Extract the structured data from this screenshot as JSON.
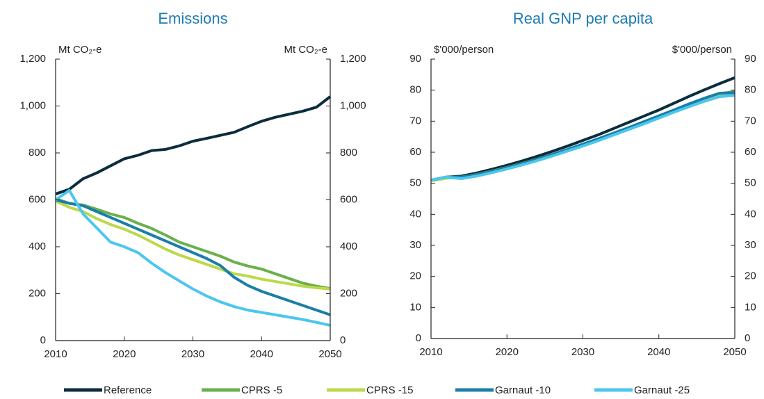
{
  "chart_data": [
    {
      "type": "line",
      "title": "Emissions",
      "ylabel": "Mt CO₂-e",
      "y2label": "Mt CO₂-e",
      "x": [
        2010,
        2012,
        2014,
        2016,
        2018,
        2020,
        2022,
        2024,
        2026,
        2028,
        2030,
        2032,
        2034,
        2036,
        2038,
        2040,
        2042,
        2044,
        2046,
        2048,
        2050
      ],
      "xlim": [
        2010,
        2050
      ],
      "xticks": [
        2010,
        2020,
        2030,
        2040,
        2050
      ],
      "ylim": [
        0,
        1200
      ],
      "yticks": [
        0,
        200,
        400,
        600,
        800,
        {
          "value": 1000,
          "label": "1,000"
        },
        {
          "value": 1200,
          "label": "1,200"
        }
      ],
      "y2lim": [
        0,
        1200
      ],
      "y2ticks": [
        0,
        200,
        400,
        600,
        800,
        {
          "value": 1000,
          "label": "1,000"
        },
        {
          "value": 1200,
          "label": "1,200"
        }
      ],
      "series": [
        {
          "name": "Reference",
          "color": "#0b2d3c",
          "values": [
            625,
            645,
            690,
            715,
            745,
            775,
            790,
            810,
            815,
            830,
            850,
            862,
            875,
            888,
            912,
            935,
            952,
            965,
            978,
            995,
            1040
          ]
        },
        {
          "name": "CPRS -5",
          "color": "#6ab04c",
          "values": [
            605,
            585,
            578,
            560,
            540,
            525,
            500,
            478,
            450,
            420,
            400,
            380,
            360,
            335,
            318,
            305,
            285,
            265,
            245,
            232,
            222
          ]
        },
        {
          "name": "CPRS -15",
          "color": "#bcd94a",
          "values": [
            595,
            568,
            550,
            520,
            495,
            475,
            450,
            420,
            390,
            365,
            345,
            325,
            305,
            285,
            275,
            262,
            252,
            242,
            232,
            225,
            220
          ]
        },
        {
          "name": "Garnaut -10",
          "color": "#1a7fa8",
          "values": [
            600,
            585,
            575,
            550,
            525,
            500,
            475,
            450,
            425,
            400,
            375,
            350,
            320,
            270,
            235,
            210,
            190,
            170,
            150,
            130,
            110
          ]
        },
        {
          "name": "Garnaut -25",
          "color": "#4cc6ef",
          "values": [
            600,
            640,
            540,
            480,
            420,
            400,
            375,
            330,
            290,
            255,
            220,
            190,
            165,
            145,
            130,
            120,
            110,
            100,
            90,
            78,
            65
          ]
        }
      ]
    },
    {
      "type": "line",
      "title": "Real GNP per capita",
      "ylabel": "$'000/person",
      "y2label": "$'000/person",
      "x": [
        2010,
        2012,
        2014,
        2016,
        2018,
        2020,
        2022,
        2024,
        2026,
        2028,
        2030,
        2032,
        2034,
        2036,
        2038,
        2040,
        2042,
        2044,
        2046,
        2048,
        2050
      ],
      "xlim": [
        2010,
        2050
      ],
      "xticks": [
        2010,
        2020,
        2030,
        2040,
        2050
      ],
      "ylim": [
        0,
        90
      ],
      "yticks": [
        0,
        10,
        20,
        30,
        40,
        50,
        60,
        70,
        80,
        90
      ],
      "y2lim": [
        0,
        90
      ],
      "y2ticks": [
        0,
        10,
        20,
        30,
        40,
        50,
        60,
        70,
        80,
        90
      ],
      "series": [
        {
          "color": "#0b2d3c",
          "values": [
            51,
            52,
            52.3,
            53.3,
            54.5,
            55.8,
            57.2,
            58.7,
            60.3,
            62,
            63.8,
            65.6,
            67.6,
            69.6,
            71.6,
            73.6,
            75.8,
            78,
            80.1,
            82.1,
            84
          ]
        },
        {
          "color": "#6ab04c",
          "values": [
            51,
            52,
            52,
            52.8,
            53.9,
            55.1,
            56.4,
            57.8,
            59.3,
            60.9,
            62.6,
            64.3,
            66.1,
            67.9,
            69.8,
            71.7,
            73.6,
            75.5,
            77.3,
            78.9,
            79.5
          ]
        },
        {
          "color": "#bcd94a",
          "values": [
            50.8,
            51.6,
            51.9,
            52.7,
            53.8,
            55,
            56.2,
            57.6,
            59.1,
            60.6,
            62.2,
            63.9,
            65.7,
            67.5,
            69.4,
            71.2,
            73.1,
            75,
            76.8,
            78.4,
            79
          ]
        },
        {
          "color": "#1a7fa8",
          "values": [
            51,
            52,
            52,
            52.7,
            53.8,
            55,
            56.3,
            57.7,
            59.3,
            60.9,
            62.6,
            64.3,
            66.1,
            67.9,
            69.8,
            71.7,
            73.6,
            75.6,
            77.4,
            79,
            79.2
          ]
        },
        {
          "color": "#4cc6ef",
          "values": [
            51,
            52,
            51.5,
            52.3,
            53.4,
            54.6,
            55.9,
            57.3,
            58.8,
            60.4,
            62,
            63.7,
            65.5,
            67.3,
            69.1,
            71,
            72.9,
            74.7,
            76.4,
            77.9,
            78.3
          ]
        }
      ]
    }
  ]
}
